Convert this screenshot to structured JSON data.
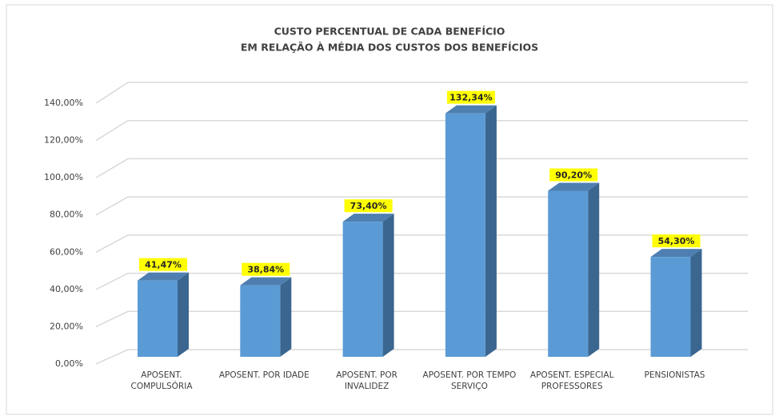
{
  "chart_data": {
    "type": "bar3d",
    "title": "CUSTO PERCENTUAL DE CADA BENEFÍCIO",
    "subtitle": "EM RELAÇÃO À MÉDIA DOS CUSTOS DOS BENEFÍCIOS",
    "categories": [
      "APOSENT. COMPULSÓRIA",
      "APOSENT. POR IDADE",
      "APOSENT. POR INVALIDEZ",
      "APOSENT. POR TEMPO SERVIÇO",
      "APOSENT. ESPECIAL PROFESSORES",
      "PENSIONISTAS"
    ],
    "values": [
      41.47,
      38.84,
      73.4,
      132.34,
      90.2,
      54.3
    ],
    "value_labels": [
      "41,47%",
      "38,84%",
      "73,40%",
      "132,34%",
      "90,20%",
      "54,30%"
    ],
    "color": "#5b9bd5",
    "ylim": [
      0,
      140
    ],
    "yticks": [
      {
        "value": 0,
        "label": "0,00%"
      },
      {
        "value": 20,
        "label": "20,00%"
      },
      {
        "value": 40,
        "label": "40,00%"
      },
      {
        "value": 60,
        "label": "60,00%"
      },
      {
        "value": 80,
        "label": "80,00%"
      },
      {
        "value": 100,
        "label": "100,00%"
      },
      {
        "value": 120,
        "label": "120,00%"
      },
      {
        "value": 140,
        "label": "140,00%"
      }
    ],
    "grid": true
  }
}
